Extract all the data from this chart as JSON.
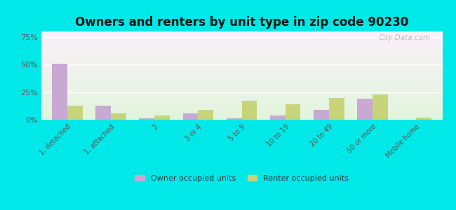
{
  "title": "Owners and renters by unit type in zip code 90230",
  "categories": [
    "1, detached",
    "1, attached",
    "2",
    "3 or 4",
    "5 to 9",
    "10 to 19",
    "20 to 49",
    "50 or more",
    "Mobile home"
  ],
  "owner_values": [
    51,
    13,
    1.5,
    6,
    1.5,
    4,
    9,
    19,
    0
  ],
  "renter_values": [
    13,
    6,
    4,
    9,
    17,
    14,
    20,
    23,
    2
  ],
  "owner_color": "#c9a8d4",
  "renter_color": "#c8d47a",
  "background_color": "#00e8e8",
  "yticks": [
    0,
    25,
    50,
    75
  ],
  "ylim": [
    0,
    80
  ],
  "legend_owner": "Owner occupied units",
  "legend_renter": "Renter occupied units",
  "bar_width": 0.35,
  "title_fontsize": 12
}
